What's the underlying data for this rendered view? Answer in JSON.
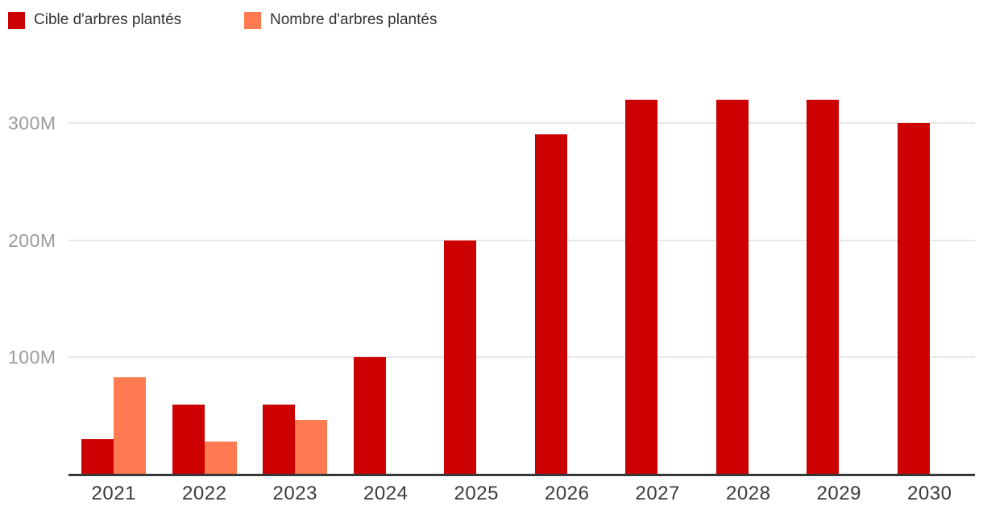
{
  "chart_data": {
    "type": "bar",
    "title": "",
    "xlabel": "",
    "ylabel": "",
    "categories": [
      "2021",
      "2022",
      "2023",
      "2024",
      "2025",
      "2026",
      "2027",
      "2028",
      "2029",
      "2030"
    ],
    "series": [
      {
        "name": "Cible d'arbres plantés",
        "color": "#cc0000",
        "values": [
          30,
          60,
          60,
          100,
          200,
          290,
          320,
          320,
          320,
          300
        ]
      },
      {
        "name": "Nombre d'arbres plantés",
        "color": "#ff7a50",
        "values": [
          83,
          28,
          47,
          null,
          null,
          null,
          null,
          null,
          null,
          null
        ]
      }
    ],
    "unit": "millions of trees (M)",
    "y_ticks": [
      {
        "value": 100,
        "label": "100M"
      },
      {
        "value": 200,
        "label": "200M"
      },
      {
        "value": 300,
        "label": "300M"
      }
    ],
    "ylim": [
      0,
      347
    ],
    "grid": "horizontal",
    "legend_position": "top-left"
  },
  "colors": {
    "background": "#ffffff",
    "target_red": "#cc0000",
    "planted_orange": "#ff7a50",
    "gridline": "#e8e8e8",
    "axis_line": "#383838",
    "y_tick_text": "#9b9b9b",
    "x_tick_text": "#3a3a3a",
    "legend_text": "#333333"
  }
}
